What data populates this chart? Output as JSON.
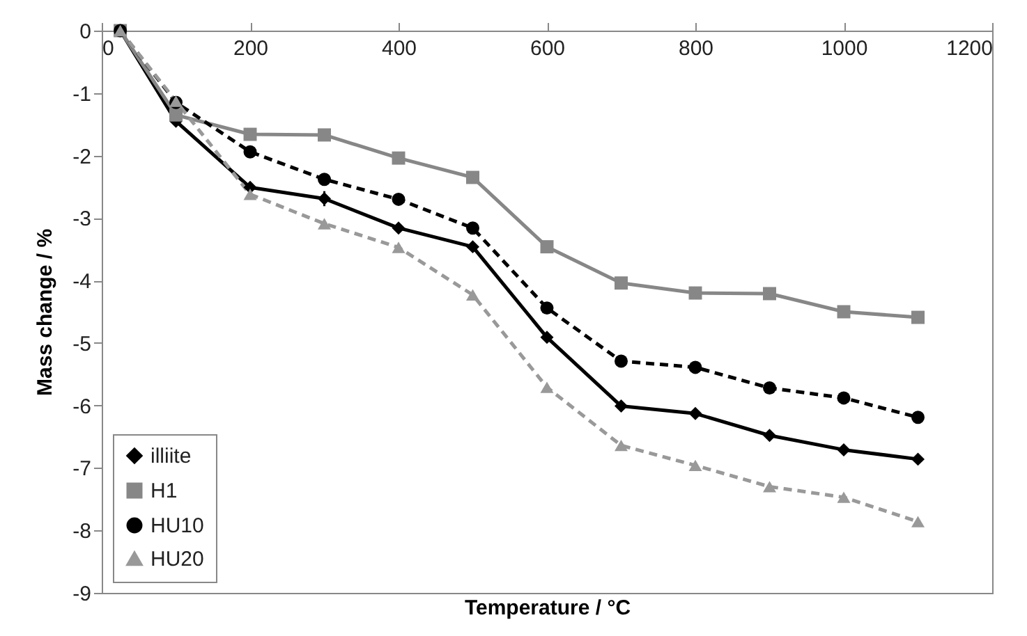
{
  "chart_data": {
    "type": "line",
    "xlabel": "Temperature / °C",
    "ylabel": "Mass change / %",
    "x": [
      25,
      100,
      200,
      300,
      400,
      500,
      600,
      700,
      800,
      900,
      1000,
      1100
    ],
    "series": [
      {
        "name": "illiite",
        "color": "#000000",
        "marker": "diamond",
        "line_style": "solid",
        "values": [
          0,
          -1.45,
          -2.51,
          -2.69,
          -3.16,
          -3.46,
          -4.91,
          -6.01,
          -6.13,
          -6.48,
          -6.71,
          -6.86
        ],
        "errors": [
          null,
          null,
          null,
          0.12,
          null,
          null,
          null,
          null,
          null,
          null,
          null,
          null
        ]
      },
      {
        "name": "H1",
        "color": "#878787",
        "marker": "square",
        "line_style": "solid",
        "values": [
          0,
          -1.35,
          -1.66,
          -1.67,
          -2.04,
          -2.35,
          -3.46,
          -4.04,
          -4.2,
          -4.21,
          -4.5,
          -4.59
        ]
      },
      {
        "name": "HU10",
        "color": "#000000",
        "marker": "circle",
        "line_style": "dashed",
        "values": [
          0,
          -1.15,
          -1.94,
          -2.38,
          -2.7,
          -3.16,
          -4.44,
          -5.29,
          -5.39,
          -5.72,
          -5.88,
          -6.19
        ]
      },
      {
        "name": "HU20",
        "color": "#999999",
        "marker": "triangle",
        "line_style": "dashed",
        "values": [
          0,
          -1.13,
          -2.62,
          -3.09,
          -3.47,
          -4.23,
          -5.71,
          -6.64,
          -6.96,
          -7.3,
          -7.47,
          -7.86
        ]
      }
    ],
    "xlim": [
      0,
      1200
    ],
    "xticks": [
      0,
      200,
      400,
      600,
      800,
      1000,
      1200
    ],
    "ylim": [
      -9,
      0
    ],
    "yticks": [
      -9,
      -8,
      -7,
      -6,
      -5,
      -4,
      -3,
      -2,
      -1,
      0
    ],
    "grid": false,
    "legend": "bottom left"
  }
}
